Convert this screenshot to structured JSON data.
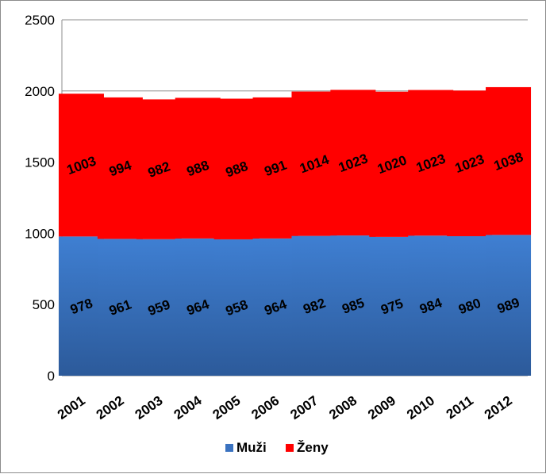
{
  "chart_data": {
    "type": "bar",
    "stacked": true,
    "categories": [
      "2001",
      "2002",
      "2003",
      "2004",
      "2005",
      "2006",
      "2007",
      "2008",
      "2009",
      "2010",
      "2011",
      "2012"
    ],
    "series": [
      {
        "name": "Muži",
        "color": "#3a72c0",
        "values": [
          978,
          961,
          959,
          964,
          958,
          964,
          982,
          985,
          975,
          984,
          980,
          989
        ]
      },
      {
        "name": "Ženy",
        "color": "#ff0000",
        "values": [
          1003,
          994,
          982,
          988,
          988,
          991,
          1014,
          1023,
          1020,
          1023,
          1023,
          1038
        ]
      }
    ],
    "ylim": [
      0,
      2500
    ],
    "yticks": [
      0,
      500,
      1000,
      1500,
      2000,
      2500
    ],
    "grid": true,
    "legend_position": "bottom",
    "data_labels": true
  }
}
